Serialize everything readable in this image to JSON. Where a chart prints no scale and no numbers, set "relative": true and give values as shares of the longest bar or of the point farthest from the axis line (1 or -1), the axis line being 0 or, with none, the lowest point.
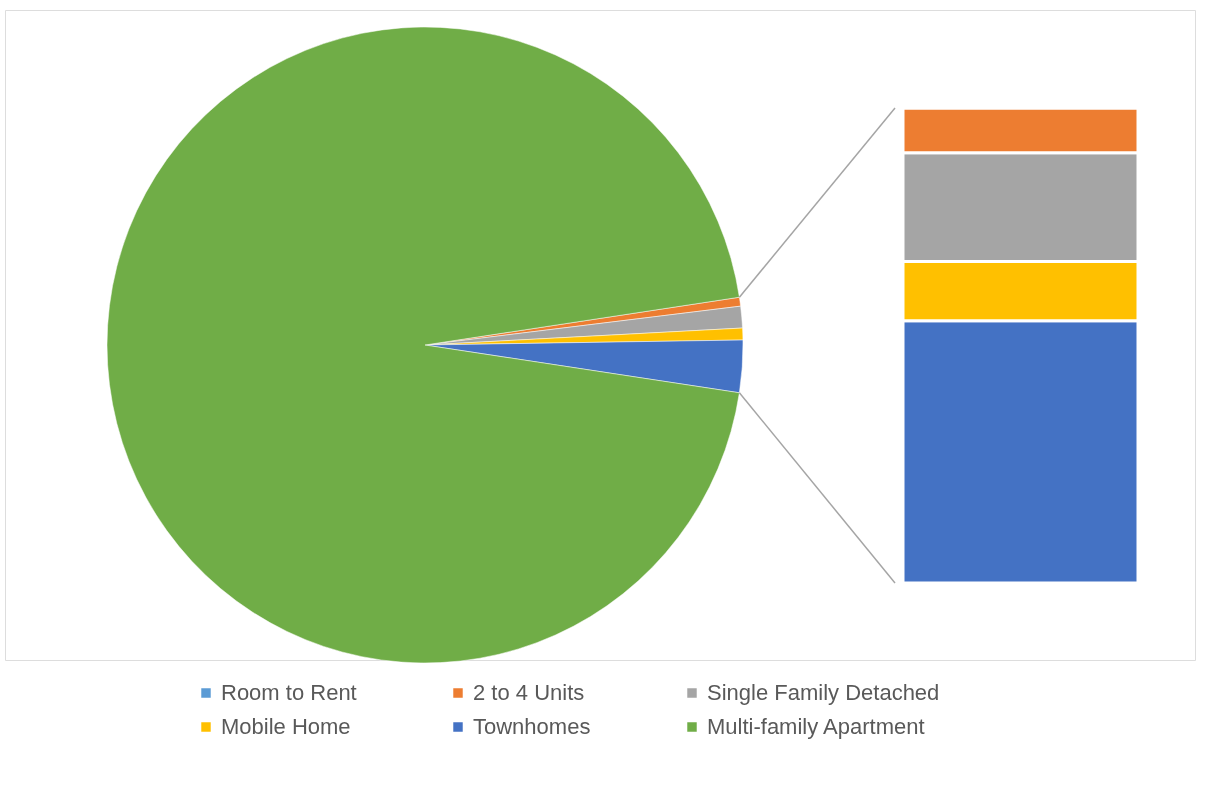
{
  "chart_data": [
    {
      "type": "pie",
      "categories": [
        "Room to Rent",
        "2 to 4 Units",
        "Single Family Detached",
        "Mobile Home",
        "Townhomes",
        "Multi-family Apartment"
      ],
      "values": [
        0,
        0.45,
        1.1,
        0.6,
        2.65,
        95.2
      ],
      "colors": [
        "#5b9bd5",
        "#ed7d31",
        "#a5a5a5",
        "#ffc000",
        "#4472c4",
        "#70ad47"
      ],
      "legend": "bottom"
    },
    {
      "type": "bar",
      "stacked": true,
      "relative": true,
      "categories": [
        null
      ],
      "series": [
        {
          "color": "#4472c4",
          "values": [
            0.552
          ]
        },
        {
          "color": "#ffc000",
          "values": [
            0.125
          ]
        },
        {
          "color": "#a5a5a5",
          "values": [
            0.229
          ]
        },
        {
          "color": "#ed7d31",
          "values": [
            0.094
          ]
        },
        {
          "color": "#5b9bd5",
          "values": [
            0
          ]
        }
      ]
    }
  ]
}
